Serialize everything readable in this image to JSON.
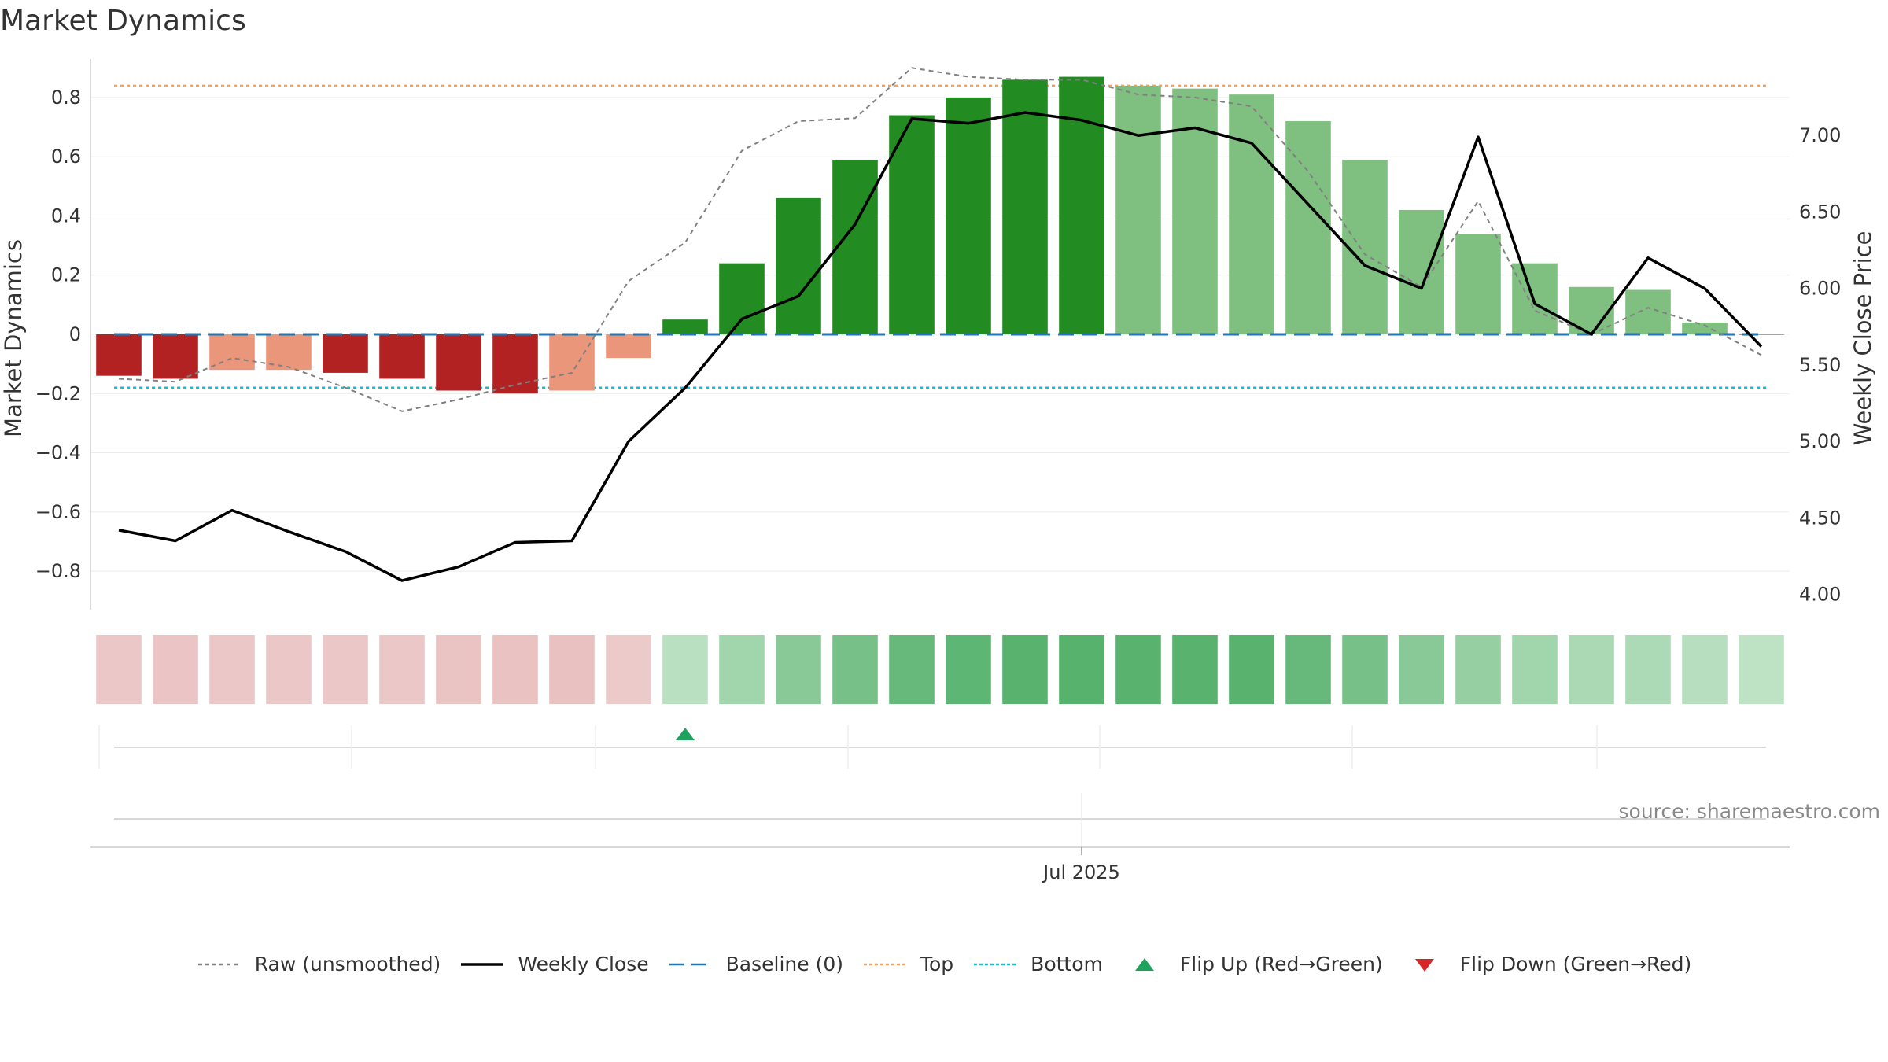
{
  "title": "Market Dynamics",
  "source": "source: sharemaestro.com",
  "colors": {
    "strong_red": "#b22222",
    "weak_red": "#e9967a",
    "strong_green": "#228b22",
    "weak_green": "#7fbf7f",
    "raw": "#808080",
    "close": "#000000",
    "baseline": "#1f77b4",
    "top": "#f4a261",
    "bottom": "#17becf",
    "flip_up": "#1fa35c",
    "flip_down": "#d62728"
  },
  "legend": [
    {
      "key": "raw",
      "label": "Raw (unsmoothed)"
    },
    {
      "key": "close",
      "label": "Weekly Close"
    },
    {
      "key": "baseline",
      "label": "Baseline (0)"
    },
    {
      "key": "top",
      "label": "Top"
    },
    {
      "key": "bottom",
      "label": "Bottom"
    },
    {
      "key": "flip_up",
      "label": "Flip Up (Red→Green)"
    },
    {
      "key": "flip_down",
      "label": "Flip Down (Green→Red)"
    }
  ],
  "chart_data": {
    "type": "bar",
    "title": "Market Dynamics",
    "ylabel": "Market Dynamics",
    "y2label": "Weekly Close Price",
    "ylim": [
      -0.93,
      0.93
    ],
    "y2lim": [
      3.9,
      7.5
    ],
    "yticks": [
      -0.8,
      -0.6,
      -0.4,
      -0.2,
      0,
      0.2,
      0.4,
      0.6,
      0.8
    ],
    "ytick_labels": [
      "−0.8",
      "−0.6",
      "−0.4",
      "−0.2",
      "0",
      "0.2",
      "0.4",
      "0.6",
      "0.8"
    ],
    "y2ticks": [
      4.0,
      4.5,
      5.0,
      5.5,
      6.0,
      6.5,
      7.0
    ],
    "y2tick_labels": [
      "4.00",
      "4.50",
      "5.00",
      "5.50",
      "6.00",
      "6.50",
      "7.00"
    ],
    "top_level": 0.84,
    "bottom_level": -0.18,
    "baseline": 0,
    "xtick_label": "Jul 2025",
    "xtick_index": 17,
    "weeks": 30,
    "momentum": [
      -0.14,
      -0.15,
      -0.12,
      -0.12,
      -0.13,
      -0.15,
      -0.19,
      -0.2,
      -0.19,
      -0.08,
      0.05,
      0.24,
      0.46,
      0.59,
      0.74,
      0.8,
      0.86,
      0.87,
      0.84,
      0.83,
      0.81,
      0.72,
      0.59,
      0.42,
      0.34,
      0.24,
      0.16,
      0.15,
      0.04,
      0.0
    ],
    "bar_state": [
      "strong_red",
      "strong_red",
      "weak_red",
      "weak_red",
      "strong_red",
      "strong_red",
      "strong_red",
      "strong_red",
      "weak_red",
      "weak_red",
      "strong_green",
      "strong_green",
      "strong_green",
      "strong_green",
      "strong_green",
      "strong_green",
      "strong_green",
      "strong_green",
      "weak_green",
      "weak_green",
      "weak_green",
      "weak_green",
      "weak_green",
      "weak_green",
      "weak_green",
      "weak_green",
      "weak_green",
      "weak_green",
      "weak_green",
      "weak_green"
    ],
    "raw": [
      -0.15,
      -0.16,
      -0.08,
      -0.11,
      -0.18,
      -0.26,
      -0.22,
      -0.17,
      -0.13,
      0.18,
      0.31,
      0.62,
      0.72,
      0.73,
      0.9,
      0.87,
      0.86,
      0.86,
      0.81,
      0.8,
      0.77,
      0.55,
      0.27,
      0.16,
      0.45,
      0.08,
      0.0,
      0.09,
      0.03,
      -0.07
    ],
    "weekly_close": [
      4.42,
      4.35,
      4.55,
      4.41,
      4.28,
      4.09,
      4.18,
      4.34,
      4.35,
      5.0,
      5.35,
      5.8,
      5.95,
      6.42,
      7.11,
      7.08,
      7.15,
      7.1,
      7.0,
      7.05,
      6.95,
      6.55,
      6.15,
      6.0,
      6.99,
      5.9,
      5.7,
      6.2,
      6.0,
      5.62
    ],
    "heat_strength": [
      -0.25,
      -0.28,
      -0.25,
      -0.25,
      -0.25,
      -0.25,
      -0.3,
      -0.32,
      -0.33,
      -0.2,
      0.2,
      0.35,
      0.5,
      0.6,
      0.7,
      0.75,
      0.78,
      0.8,
      0.78,
      0.78,
      0.78,
      0.7,
      0.6,
      0.5,
      0.42,
      0.35,
      0.3,
      0.28,
      0.22,
      0.18
    ],
    "flip_up_indices": [
      10
    ],
    "flip_down_indices": []
  }
}
